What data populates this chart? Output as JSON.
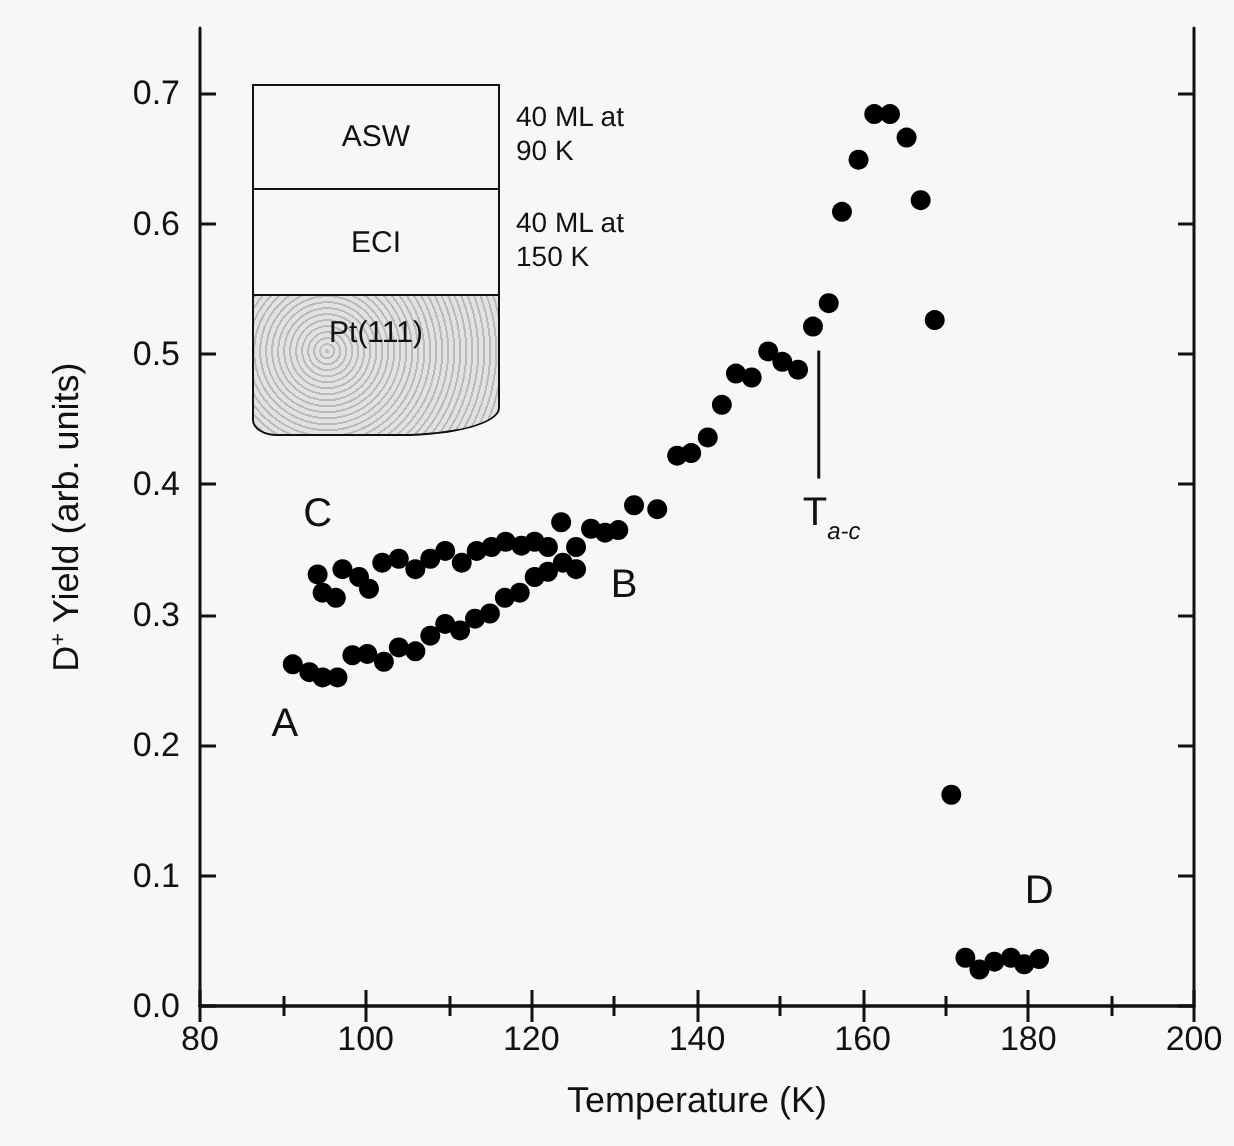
{
  "chart_data": {
    "type": "scatter",
    "xlabel": "Temperature (K)",
    "ylabel": "D$^{+}$ Yield (arb. units)",
    "xlim": [
      80,
      200
    ],
    "xticks": [
      80,
      100,
      120,
      140,
      160,
      180,
      200
    ],
    "ylim": [
      0,
      0.75
    ],
    "yticks": [
      {
        "value": 0,
        "label": "0.0"
      },
      0.1,
      0.2,
      0.3,
      0.4,
      0.5,
      0.6,
      0.7
    ],
    "grid": false,
    "marker": "circle",
    "series": [
      {
        "color": "#000000",
        "x": [
          91.2,
          93.2,
          94.8,
          96.6,
          98.4,
          100.2,
          102.2,
          104.0,
          106.0,
          107.8,
          109.6,
          111.4,
          113.2,
          115.0,
          116.8,
          118.6,
          120.4,
          122.0,
          123.8,
          125.4,
          94.2,
          94.8,
          96.4,
          97.2,
          99.2,
          100.4,
          102.0,
          104.0,
          106.0,
          107.8,
          109.6,
          111.6,
          113.4,
          115.2,
          116.9,
          118.8,
          120.4,
          122.0,
          123.6,
          125.4,
          127.2,
          128.9,
          130.5,
          132.4,
          135.2,
          137.6,
          139.3,
          141.3,
          143.0,
          144.7,
          146.6,
          148.6,
          150.3,
          152.2,
          154.0,
          155.9,
          157.5,
          159.5,
          161.4,
          163.3,
          165.3,
          167.0,
          168.7,
          170.7,
          172.4,
          174.1,
          175.9,
          177.9,
          179.5,
          181.3
        ],
        "values": [
          0.262,
          0.256,
          0.252,
          0.252,
          0.269,
          0.27,
          0.264,
          0.275,
          0.272,
          0.284,
          0.293,
          0.288,
          0.297,
          0.301,
          0.313,
          0.317,
          0.329,
          0.333,
          0.34,
          0.335,
          0.331,
          0.317,
          0.313,
          0.335,
          0.329,
          0.32,
          0.34,
          0.343,
          0.335,
          0.343,
          0.349,
          0.34,
          0.349,
          0.352,
          0.356,
          0.353,
          0.356,
          0.352,
          0.371,
          0.352,
          0.366,
          0.363,
          0.365,
          0.384,
          0.381,
          0.422,
          0.424,
          0.436,
          0.461,
          0.485,
          0.482,
          0.502,
          0.494,
          0.488,
          0.521,
          0.539,
          0.609,
          0.649,
          0.684,
          0.684,
          0.666,
          0.618,
          0.526,
          0.162,
          0.037,
          0.028,
          0.034,
          0.037,
          0.032,
          0.036
        ]
      }
    ],
    "ref_lines": [
      {
        "axis": "x",
        "value": 154.7,
        "label": "T$_{a-c}$"
      }
    ],
    "annotations": [
      "ASW",
      "ECI",
      "Pt(111)",
      "40 ML at 90 K",
      "40 ML at 150 K",
      {
        "text": "A",
        "x": 91.2,
        "y": 0.262
      },
      {
        "text": "B",
        "x": 125.4,
        "y": 0.335
      },
      {
        "text": "C",
        "x": 94.2,
        "y": 0.331
      },
      {
        "text": "D",
        "x": 181.3,
        "y": 0.036
      }
    ]
  }
}
